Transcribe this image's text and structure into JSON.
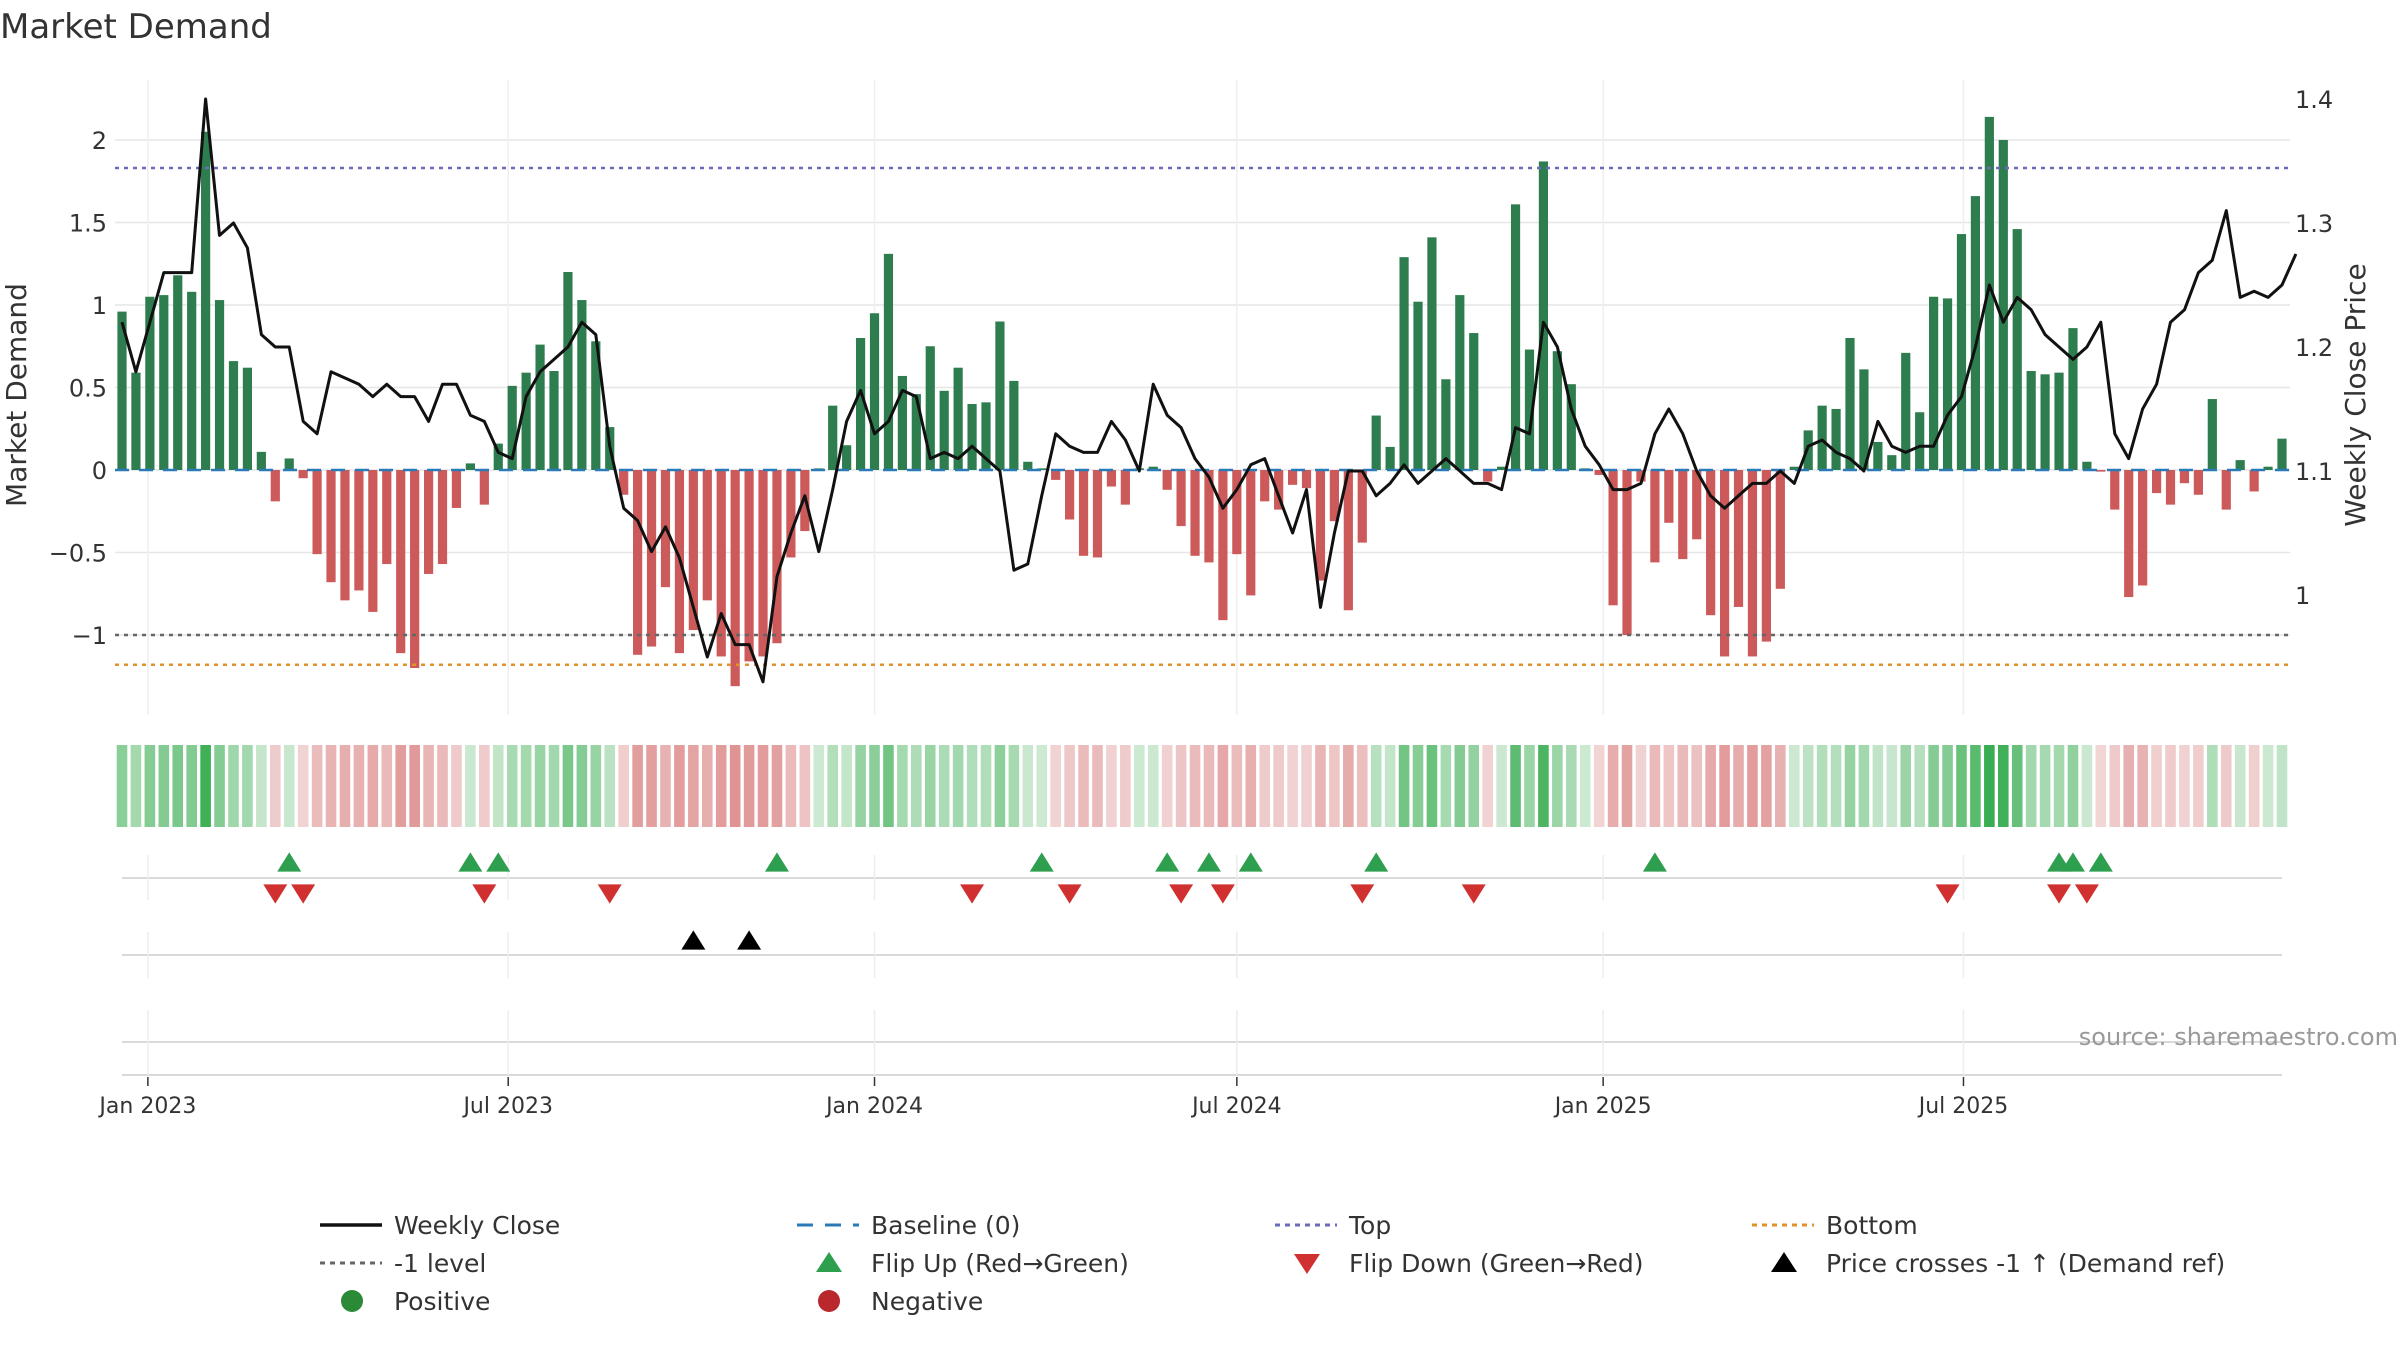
{
  "chart_data": {
    "type": "bar",
    "title": "Market Demand",
    "ylabel": "Market Demand",
    "y2label": "Weekly Close Price",
    "ylim": [
      -1.5,
      2.35
    ],
    "y2lim": [
      0.9,
      1.43
    ],
    "x_start": "2022-12-19",
    "x_end": "2025-09-22",
    "yticks": [
      -1,
      -0.5,
      0,
      0.5,
      1,
      1.5,
      2
    ],
    "ytick_labels": [
      "−1",
      "−0.5",
      "0",
      "0.5",
      "1",
      "1.5",
      "2"
    ],
    "y2ticks": [
      1,
      1.1,
      1.2,
      1.3,
      1.4
    ],
    "y2tick_labels": [
      "1",
      "1.1",
      "1.2",
      "1.3",
      "1.4"
    ],
    "xticks": [
      "2023-01-01",
      "2023-07-01",
      "2024-01-01",
      "2024-07-01",
      "2025-01-01",
      "2025-07-01"
    ],
    "xtick_labels": [
      "Jan 2023",
      "Jul 2023",
      "Jan 2024",
      "Jul 2024",
      "Jan 2025",
      "Jul 2025"
    ],
    "reference_lines": {
      "top": 1.83,
      "bottom": -1.18,
      "minus_one": -1.0,
      "baseline": 0
    },
    "series": [
      {
        "name": "Market Demand",
        "values": [
          0.96,
          0.59,
          1.05,
          1.06,
          1.18,
          1.08,
          2.05,
          1.03,
          0.66,
          0.62,
          0.11,
          -0.19,
          0.07,
          -0.05,
          -0.51,
          -0.68,
          -0.79,
          -0.73,
          -0.86,
          -0.57,
          -1.11,
          -1.2,
          -0.63,
          -0.57,
          -0.23,
          0.04,
          -0.21,
          0.16,
          0.51,
          0.59,
          0.76,
          0.6,
          1.2,
          1.03,
          0.78,
          0.26,
          -0.15,
          -1.12,
          -1.07,
          -0.71,
          -1.11,
          -0.97,
          -0.79,
          -1.13,
          -1.31,
          -1.16,
          -1.13,
          -1.05,
          -0.53,
          -0.37,
          0.01,
          0.39,
          0.15,
          0.8,
          0.95,
          1.31,
          0.57,
          0.46,
          0.75,
          0.48,
          0.62,
          0.4,
          0.41,
          0.9,
          0.54,
          0.05,
          0.01,
          -0.06,
          -0.3,
          -0.52,
          -0.53,
          -0.1,
          -0.21,
          0.01,
          0.02,
          -0.12,
          -0.34,
          -0.52,
          -0.56,
          -0.91,
          -0.51,
          -0.76,
          -0.19,
          -0.24,
          -0.09,
          -0.11,
          -0.67,
          -0.31,
          -0.85,
          -0.44,
          0.33,
          0.14,
          1.29,
          1.02,
          1.41,
          0.55,
          1.06,
          0.83,
          -0.07,
          0.02,
          1.61,
          0.73,
          1.87,
          0.72,
          0.52,
          0.01,
          -0.03,
          -0.82,
          -1.0,
          -0.07,
          -0.56,
          -0.32,
          -0.54,
          -0.42,
          -0.88,
          -1.13,
          -0.83,
          -1.13,
          -1.04,
          -0.72,
          0.02,
          0.24,
          0.39,
          0.37,
          0.8,
          0.61,
          0.17,
          0.09,
          0.71,
          0.35,
          1.05,
          1.04,
          1.43,
          1.66,
          2.14,
          2.0,
          1.46,
          0.6,
          0.58,
          0.59,
          0.86,
          0.05,
          -0.01,
          -0.24,
          -0.77,
          -0.7,
          -0.14,
          -0.21,
          -0.08,
          -0.15,
          0.43,
          -0.24,
          0.06,
          -0.13,
          0.02,
          0.19
        ]
      },
      {
        "name": "Weekly Close",
        "values": [
          1.22,
          1.18,
          1.22,
          1.26,
          1.26,
          1.26,
          1.4,
          1.29,
          1.3,
          1.28,
          1.21,
          1.2,
          1.2,
          1.14,
          1.13,
          1.18,
          1.175,
          1.17,
          1.16,
          1.17,
          1.16,
          1.16,
          1.14,
          1.17,
          1.17,
          1.145,
          1.14,
          1.115,
          1.11,
          1.16,
          1.18,
          1.19,
          1.2,
          1.22,
          1.21,
          1.12,
          1.07,
          1.06,
          1.035,
          1.055,
          1.03,
          0.99,
          0.95,
          0.985,
          0.96,
          0.96,
          0.93,
          1.015,
          1.05,
          1.08,
          1.035,
          1.085,
          1.14,
          1.165,
          1.13,
          1.14,
          1.165,
          1.16,
          1.11,
          1.115,
          1.11,
          1.12,
          1.11,
          1.1,
          1.02,
          1.025,
          1.08,
          1.13,
          1.12,
          1.115,
          1.115,
          1.14,
          1.125,
          1.1,
          1.17,
          1.145,
          1.135,
          1.11,
          1.095,
          1.07,
          1.085,
          1.105,
          1.11,
          1.08,
          1.05,
          1.085,
          0.99,
          1.05,
          1.1,
          1.1,
          1.08,
          1.09,
          1.105,
          1.09,
          1.1,
          1.11,
          1.1,
          1.09,
          1.09,
          1.085,
          1.135,
          1.13,
          1.22,
          1.2,
          1.15,
          1.12,
          1.105,
          1.085,
          1.085,
          1.09,
          1.13,
          1.15,
          1.13,
          1.1,
          1.08,
          1.07,
          1.08,
          1.09,
          1.09,
          1.1,
          1.09,
          1.12,
          1.125,
          1.115,
          1.11,
          1.1,
          1.14,
          1.12,
          1.115,
          1.12,
          1.12,
          1.145,
          1.16,
          1.2,
          1.25,
          1.22,
          1.24,
          1.23,
          1.21,
          1.2,
          1.19,
          1.2,
          1.22,
          1.13,
          1.11,
          1.15,
          1.17,
          1.22,
          1.23,
          1.26,
          1.27,
          1.31,
          1.24,
          1.245,
          1.24,
          1.25,
          1.275
        ]
      }
    ],
    "markers": {
      "flip_up_weeks": [
        12,
        25,
        27,
        47,
        66,
        75,
        78,
        81,
        90,
        110,
        139,
        140,
        142
      ],
      "flip_down_weeks": [
        11,
        13,
        26,
        35,
        61,
        68,
        76,
        79,
        89,
        97,
        131,
        139,
        141
      ],
      "price_cross_weeks": [
        41,
        45
      ]
    },
    "annotation": "source: sharemaestro.com",
    "legend": {
      "placement": "bottom",
      "entries": [
        {
          "label": "Weekly Close",
          "symbol": "line",
          "color": "#111111"
        },
        {
          "label": "Baseline (0)",
          "symbol": "dash",
          "color": "#2a7ab8"
        },
        {
          "label": "Top",
          "symbol": "dot",
          "color": "#6b6bb8"
        },
        {
          "label": "Bottom",
          "symbol": "dot",
          "color": "#e0932a"
        },
        {
          "label": "-1 level",
          "symbol": "dot",
          "color": "#666666"
        },
        {
          "label": "Flip Up (Red→Green)",
          "symbol": "tri-up",
          "color": "#2e9e4f"
        },
        {
          "label": "Flip Down (Green→Red)",
          "symbol": "tri-down",
          "color": "#d13030"
        },
        {
          "label": "Price crosses -1 ↑ (Demand ref)",
          "symbol": "tri-up",
          "color": "#000000"
        },
        {
          "label": "Positive",
          "symbol": "circle",
          "color": "#2a8a35"
        },
        {
          "label": "Negative",
          "symbol": "circle",
          "color": "#b8282c"
        }
      ]
    },
    "colors": {
      "positive_bar": "#2e7d4f",
      "negative_bar": "#cc5a5a",
      "price_line": "#111111",
      "grid": "#e6e6e6"
    }
  }
}
